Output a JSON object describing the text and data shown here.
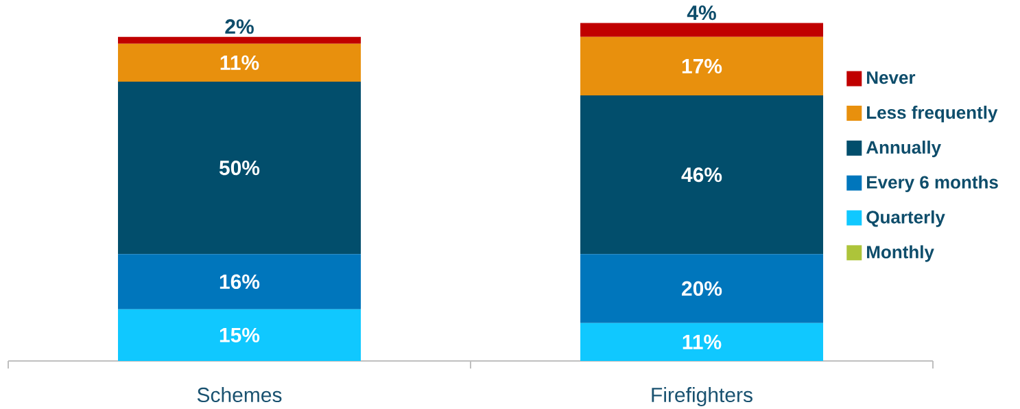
{
  "chart_data": {
    "type": "bar",
    "stacked": true,
    "categories": [
      "Schemes",
      "Firefighters"
    ],
    "series": [
      {
        "name": "Monthly",
        "color": "#adc43a",
        "values": [
          0,
          0
        ],
        "value_labels": [
          null,
          null
        ]
      },
      {
        "name": "Quarterly",
        "color": "#10c8ff",
        "values": [
          15,
          11
        ],
        "value_labels": [
          "15%",
          "11%"
        ]
      },
      {
        "name": "Every 6 months",
        "color": "#0076bc",
        "values": [
          16,
          20
        ],
        "value_labels": [
          "16%",
          "20%"
        ]
      },
      {
        "name": "Annually",
        "color": "#024e6c",
        "values": [
          50,
          46
        ],
        "value_labels": [
          "50%",
          "46%"
        ]
      },
      {
        "name": "Less frequently",
        "color": "#e8900d",
        "values": [
          11,
          17
        ],
        "value_labels": [
          "11%",
          "17%"
        ]
      },
      {
        "name": "Never",
        "color": "#c00000",
        "values": [
          2,
          4
        ],
        "value_labels": [
          "2%",
          "4%"
        ]
      }
    ],
    "legend": "right"
  }
}
